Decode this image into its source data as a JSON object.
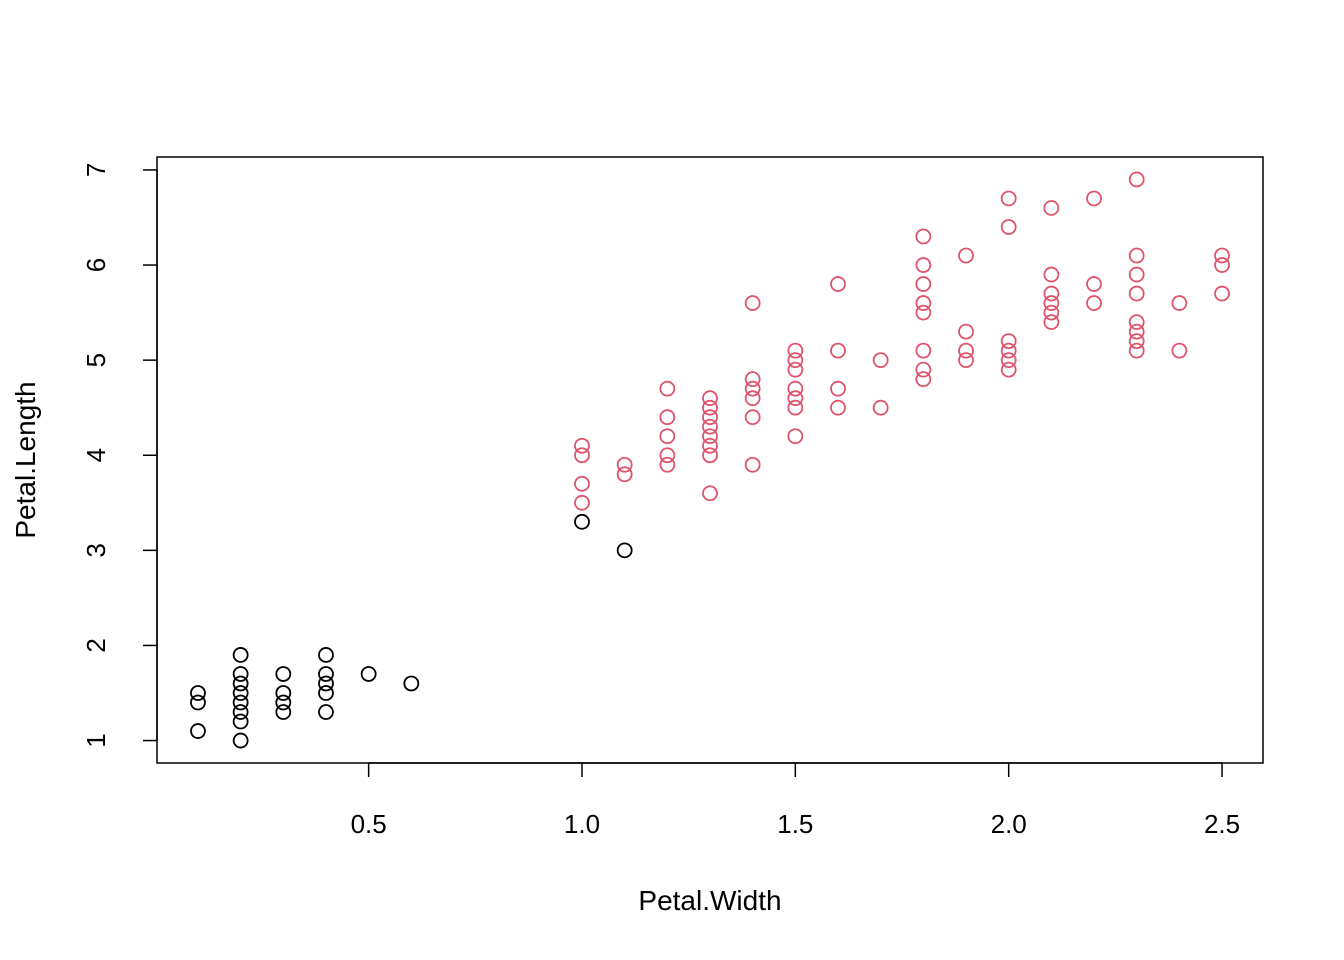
{
  "chart_data": {
    "type": "scatter",
    "title": "",
    "xlabel": "Petal.Width",
    "ylabel": "Petal.Length",
    "xlim": [
      0.1,
      2.5
    ],
    "ylim": [
      1,
      6.9
    ],
    "xticks": [
      0.5,
      1.0,
      1.5,
      2.0,
      2.5
    ],
    "xtick_labels": [
      "0.5",
      "1.0",
      "1.5",
      "2.0",
      "2.5"
    ],
    "yticks": [
      1,
      2,
      3,
      4,
      5,
      6,
      7
    ],
    "ytick_labels": [
      "1",
      "2",
      "3",
      "4",
      "5",
      "6",
      "7"
    ],
    "grid": false,
    "marker": "open-circle",
    "series": [
      {
        "color": "#000000",
        "points": [
          [
            0.1,
            1.1
          ],
          [
            0.1,
            1.4
          ],
          [
            0.1,
            1.5
          ],
          [
            0.2,
            1.0
          ],
          [
            0.2,
            1.2
          ],
          [
            0.2,
            1.3
          ],
          [
            0.2,
            1.4
          ],
          [
            0.2,
            1.5
          ],
          [
            0.2,
            1.6
          ],
          [
            0.2,
            1.7
          ],
          [
            0.2,
            1.9
          ],
          [
            0.3,
            1.3
          ],
          [
            0.3,
            1.4
          ],
          [
            0.3,
            1.5
          ],
          [
            0.3,
            1.7
          ],
          [
            0.4,
            1.3
          ],
          [
            0.4,
            1.5
          ],
          [
            0.4,
            1.6
          ],
          [
            0.4,
            1.7
          ],
          [
            0.4,
            1.9
          ],
          [
            0.5,
            1.7
          ],
          [
            0.6,
            1.6
          ],
          [
            1.0,
            3.3
          ],
          [
            1.1,
            3.0
          ]
        ]
      },
      {
        "color": "#DF536B",
        "points": [
          [
            1.0,
            3.5
          ],
          [
            1.0,
            3.7
          ],
          [
            1.0,
            4.0
          ],
          [
            1.0,
            4.1
          ],
          [
            1.1,
            3.8
          ],
          [
            1.1,
            3.9
          ],
          [
            1.2,
            3.9
          ],
          [
            1.2,
            4.0
          ],
          [
            1.2,
            4.2
          ],
          [
            1.2,
            4.4
          ],
          [
            1.2,
            4.7
          ],
          [
            1.3,
            3.6
          ],
          [
            1.3,
            4.0
          ],
          [
            1.3,
            4.1
          ],
          [
            1.3,
            4.2
          ],
          [
            1.3,
            4.3
          ],
          [
            1.3,
            4.4
          ],
          [
            1.3,
            4.5
          ],
          [
            1.3,
            4.6
          ],
          [
            1.4,
            3.9
          ],
          [
            1.4,
            4.4
          ],
          [
            1.4,
            4.6
          ],
          [
            1.4,
            4.7
          ],
          [
            1.4,
            4.8
          ],
          [
            1.4,
            5.6
          ],
          [
            1.5,
            4.2
          ],
          [
            1.5,
            4.5
          ],
          [
            1.5,
            4.6
          ],
          [
            1.5,
            4.7
          ],
          [
            1.5,
            4.9
          ],
          [
            1.5,
            5.0
          ],
          [
            1.5,
            5.1
          ],
          [
            1.6,
            4.5
          ],
          [
            1.6,
            4.7
          ],
          [
            1.6,
            5.1
          ],
          [
            1.6,
            5.8
          ],
          [
            1.7,
            4.5
          ],
          [
            1.7,
            5.0
          ],
          [
            1.8,
            4.8
          ],
          [
            1.8,
            4.9
          ],
          [
            1.8,
            5.1
          ],
          [
            1.8,
            5.5
          ],
          [
            1.8,
            5.6
          ],
          [
            1.8,
            5.8
          ],
          [
            1.8,
            6.0
          ],
          [
            1.8,
            6.3
          ],
          [
            1.9,
            5.0
          ],
          [
            1.9,
            5.1
          ],
          [
            1.9,
            5.3
          ],
          [
            1.9,
            6.1
          ],
          [
            2.0,
            4.9
          ],
          [
            2.0,
            5.0
          ],
          [
            2.0,
            5.1
          ],
          [
            2.0,
            5.2
          ],
          [
            2.0,
            6.4
          ],
          [
            2.0,
            6.7
          ],
          [
            2.1,
            5.4
          ],
          [
            2.1,
            5.5
          ],
          [
            2.1,
            5.6
          ],
          [
            2.1,
            5.7
          ],
          [
            2.1,
            5.9
          ],
          [
            2.1,
            6.6
          ],
          [
            2.2,
            5.6
          ],
          [
            2.2,
            5.8
          ],
          [
            2.2,
            6.7
          ],
          [
            2.3,
            5.1
          ],
          [
            2.3,
            5.2
          ],
          [
            2.3,
            5.3
          ],
          [
            2.3,
            5.4
          ],
          [
            2.3,
            5.7
          ],
          [
            2.3,
            5.9
          ],
          [
            2.3,
            6.1
          ],
          [
            2.3,
            6.9
          ],
          [
            2.4,
            5.1
          ],
          [
            2.4,
            5.6
          ],
          [
            2.5,
            5.7
          ],
          [
            2.5,
            6.0
          ],
          [
            2.5,
            6.1
          ]
        ]
      }
    ]
  }
}
